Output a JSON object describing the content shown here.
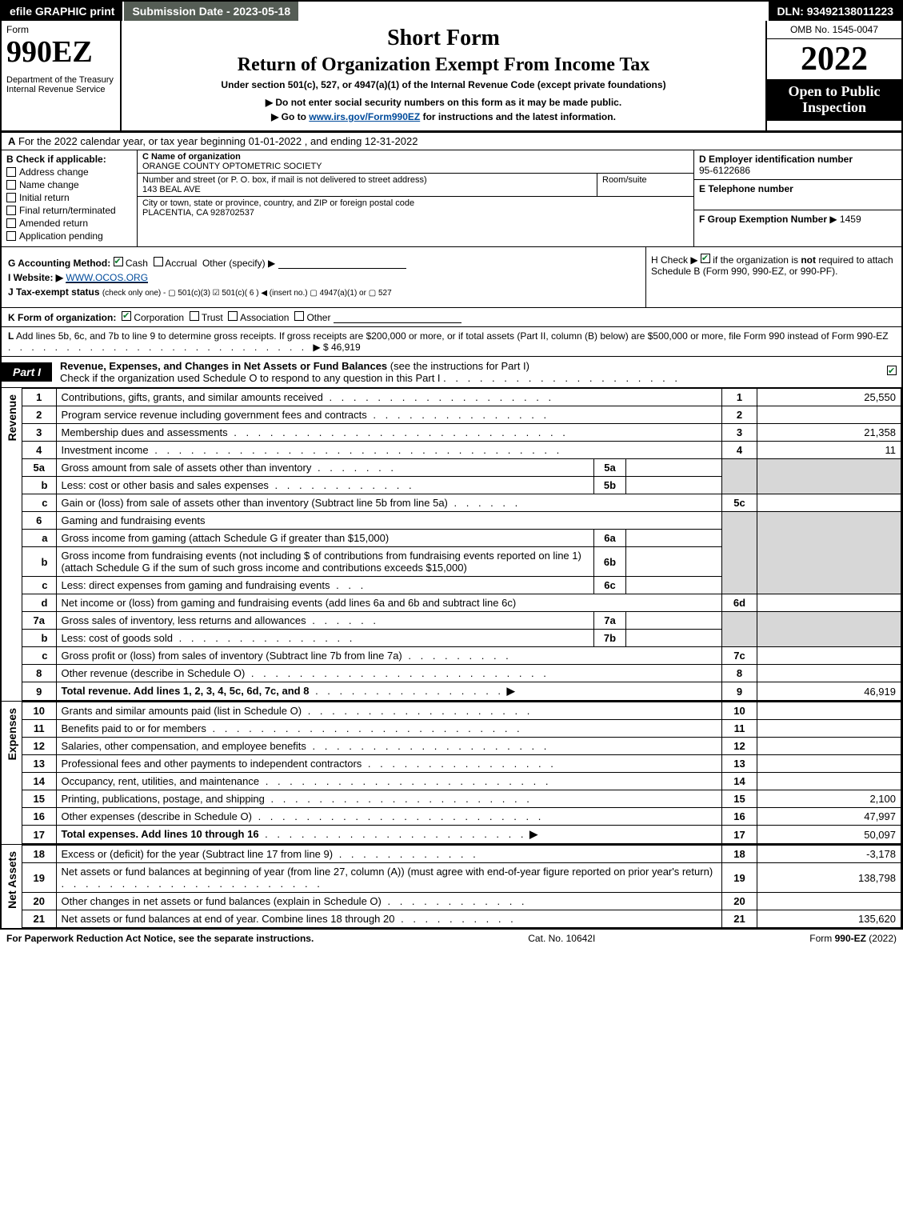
{
  "topbar": {
    "efile": "efile GRAPHIC print",
    "submission": "Submission Date - 2023-05-18",
    "dln": "DLN: 93492138011223"
  },
  "header": {
    "form_word": "Form",
    "form_code": "990EZ",
    "dept": "Department of the Treasury\nInternal Revenue Service",
    "short_form": "Short Form",
    "return_title": "Return of Organization Exempt From Income Tax",
    "under_section": "Under section 501(c), 527, or 4947(a)(1) of the Internal Revenue Code (except private foundations)",
    "instr1": "▶ Do not enter social security numbers on this form as it may be made public.",
    "instr2_pre": "▶ Go to ",
    "instr2_link": "www.irs.gov/Form990EZ",
    "instr2_post": " for instructions and the latest information.",
    "omb": "OMB No. 1545-0047",
    "year": "2022",
    "open_public": "Open to Public Inspection"
  },
  "line_a": {
    "label": "A",
    "text": "For the 2022 calendar year, or tax year beginning 01-01-2022 , and ending 12-31-2022"
  },
  "col_b": {
    "label": "B",
    "hdr": "Check if applicable:",
    "opts": [
      "Address change",
      "Name change",
      "Initial return",
      "Final return/terminated",
      "Amended return",
      "Application pending"
    ]
  },
  "col_c": {
    "name_lbl": "C Name of organization",
    "name_val": "ORANGE COUNTY OPTOMETRIC SOCIETY",
    "street_lbl": "Number and street (or P. O. box, if mail is not delivered to street address)",
    "street_val": "143 BEAL AVE",
    "room_lbl": "Room/suite",
    "city_lbl": "City or town, state or province, country, and ZIP or foreign postal code",
    "city_val": "PLACENTIA, CA  928702537"
  },
  "col_def": {
    "d_lbl": "D Employer identification number",
    "d_val": "95-6122686",
    "e_lbl": "E Telephone number",
    "f_lbl": "F Group Exemption Number",
    "f_val": "▶ 1459"
  },
  "g": {
    "lbl": "G Accounting Method:",
    "cash": "Cash",
    "accrual": "Accrual",
    "other": "Other (specify) ▶"
  },
  "h": {
    "text_pre": "H  Check ▶ ",
    "text_post": " if the organization is ",
    "not": "not",
    "rest": " required to attach Schedule B (Form 990, 990-EZ, or 990-PF)."
  },
  "i": {
    "lbl": "I Website: ▶",
    "val": "WWW.OCOS.ORG"
  },
  "j": {
    "lbl": "J Tax-exempt status",
    "rest": "(check only one) - ▢ 501(c)(3)  ☑ 501(c)( 6 ) ◀ (insert no.)  ▢ 4947(a)(1) or  ▢ 527"
  },
  "k": {
    "lbl": "K Form of organization:",
    "corp": "Corporation",
    "trust": "Trust",
    "assoc": "Association",
    "other": "Other"
  },
  "l": {
    "lbl": "L",
    "text": "Add lines 5b, 6c, and 7b to line 9 to determine gross receipts. If gross receipts are $200,000 or more, or if total assets (Part II, column (B) below) are $500,000 or more, file Form 990 instead of Form 990-EZ",
    "amount_prefix": "▶ $ ",
    "amount": "46,919"
  },
  "part1": {
    "tag": "Part I",
    "title_bold": "Revenue, Expenses, and Changes in Net Assets or Fund Balances",
    "title_rest": " (see the instructions for Part I)",
    "check_line": "Check if the organization used Schedule O to respond to any question in this Part I"
  },
  "side_labels": {
    "revenue": "Revenue",
    "expenses": "Expenses",
    "netassets": "Net Assets"
  },
  "revenue_lines": [
    {
      "ln": "1",
      "desc": "Contributions, gifts, grants, and similar amounts received",
      "num": "1",
      "amt": "25,550"
    },
    {
      "ln": "2",
      "desc": "Program service revenue including government fees and contracts",
      "num": "2",
      "amt": ""
    },
    {
      "ln": "3",
      "desc": "Membership dues and assessments",
      "num": "3",
      "amt": "21,358"
    },
    {
      "ln": "4",
      "desc": "Investment income",
      "num": "4",
      "amt": "11"
    }
  ],
  "line5": {
    "a": {
      "ln": "5a",
      "desc": "Gross amount from sale of assets other than inventory",
      "sub": "5a"
    },
    "b": {
      "ln": "b",
      "desc": "Less: cost or other basis and sales expenses",
      "sub": "5b"
    },
    "c": {
      "ln": "c",
      "desc": "Gain or (loss) from sale of assets other than inventory (Subtract line 5b from line 5a)",
      "num": "5c",
      "amt": ""
    }
  },
  "line6": {
    "hdr": {
      "ln": "6",
      "desc": "Gaming and fundraising events"
    },
    "a": {
      "ln": "a",
      "desc": "Gross income from gaming (attach Schedule G if greater than $15,000)",
      "sub": "6a"
    },
    "b": {
      "ln": "b",
      "desc": "Gross income from fundraising events (not including $                 of contributions from fundraising events reported on line 1) (attach Schedule G if the sum of such gross income and contributions exceeds $15,000)",
      "sub": "6b"
    },
    "c": {
      "ln": "c",
      "desc": "Less: direct expenses from gaming and fundraising events",
      "sub": "6c"
    },
    "d": {
      "ln": "d",
      "desc": "Net income or (loss) from gaming and fundraising events (add lines 6a and 6b and subtract line 6c)",
      "num": "6d",
      "amt": ""
    }
  },
  "line7": {
    "a": {
      "ln": "7a",
      "desc": "Gross sales of inventory, less returns and allowances",
      "sub": "7a"
    },
    "b": {
      "ln": "b",
      "desc": "Less: cost of goods sold",
      "sub": "7b"
    },
    "c": {
      "ln": "c",
      "desc": "Gross profit or (loss) from sales of inventory (Subtract line 7b from line 7a)",
      "num": "7c",
      "amt": ""
    }
  },
  "line8": {
    "ln": "8",
    "desc": "Other revenue (describe in Schedule O)",
    "num": "8",
    "amt": ""
  },
  "line9": {
    "ln": "9",
    "desc": "Total revenue. Add lines 1, 2, 3, 4, 5c, 6d, 7c, and 8",
    "num": "9",
    "amt": "46,919"
  },
  "expense_lines": [
    {
      "ln": "10",
      "desc": "Grants and similar amounts paid (list in Schedule O)",
      "num": "10",
      "amt": ""
    },
    {
      "ln": "11",
      "desc": "Benefits paid to or for members",
      "num": "11",
      "amt": ""
    },
    {
      "ln": "12",
      "desc": "Salaries, other compensation, and employee benefits",
      "num": "12",
      "amt": ""
    },
    {
      "ln": "13",
      "desc": "Professional fees and other payments to independent contractors",
      "num": "13",
      "amt": ""
    },
    {
      "ln": "14",
      "desc": "Occupancy, rent, utilities, and maintenance",
      "num": "14",
      "amt": ""
    },
    {
      "ln": "15",
      "desc": "Printing, publications, postage, and shipping",
      "num": "15",
      "amt": "2,100"
    },
    {
      "ln": "16",
      "desc": "Other expenses (describe in Schedule O)",
      "num": "16",
      "amt": "47,997"
    },
    {
      "ln": "17",
      "desc": "Total expenses. Add lines 10 through 16",
      "num": "17",
      "amt": "50,097",
      "bold": true,
      "arrow": true
    }
  ],
  "net_lines": [
    {
      "ln": "18",
      "desc": "Excess or (deficit) for the year (Subtract line 17 from line 9)",
      "num": "18",
      "amt": "-3,178"
    },
    {
      "ln": "19",
      "desc": "Net assets or fund balances at beginning of year (from line 27, column (A)) (must agree with end-of-year figure reported on prior year's return)",
      "num": "19",
      "amt": "138,798"
    },
    {
      "ln": "20",
      "desc": "Other changes in net assets or fund balances (explain in Schedule O)",
      "num": "20",
      "amt": ""
    },
    {
      "ln": "21",
      "desc": "Net assets or fund balances at end of year. Combine lines 18 through 20",
      "num": "21",
      "amt": "135,620"
    }
  ],
  "footer": {
    "left": "For Paperwork Reduction Act Notice, see the separate instructions.",
    "mid": "Cat. No. 10642I",
    "right_pre": "Form ",
    "right_bold": "990-EZ",
    "right_post": " (2022)"
  },
  "colors": {
    "black": "#000000",
    "white": "#ffffff",
    "grey_shade": "#d7d7d7",
    "link_blue": "#004b9b",
    "check_green": "#0a7a2a",
    "topbar_sub": "#555d55"
  }
}
